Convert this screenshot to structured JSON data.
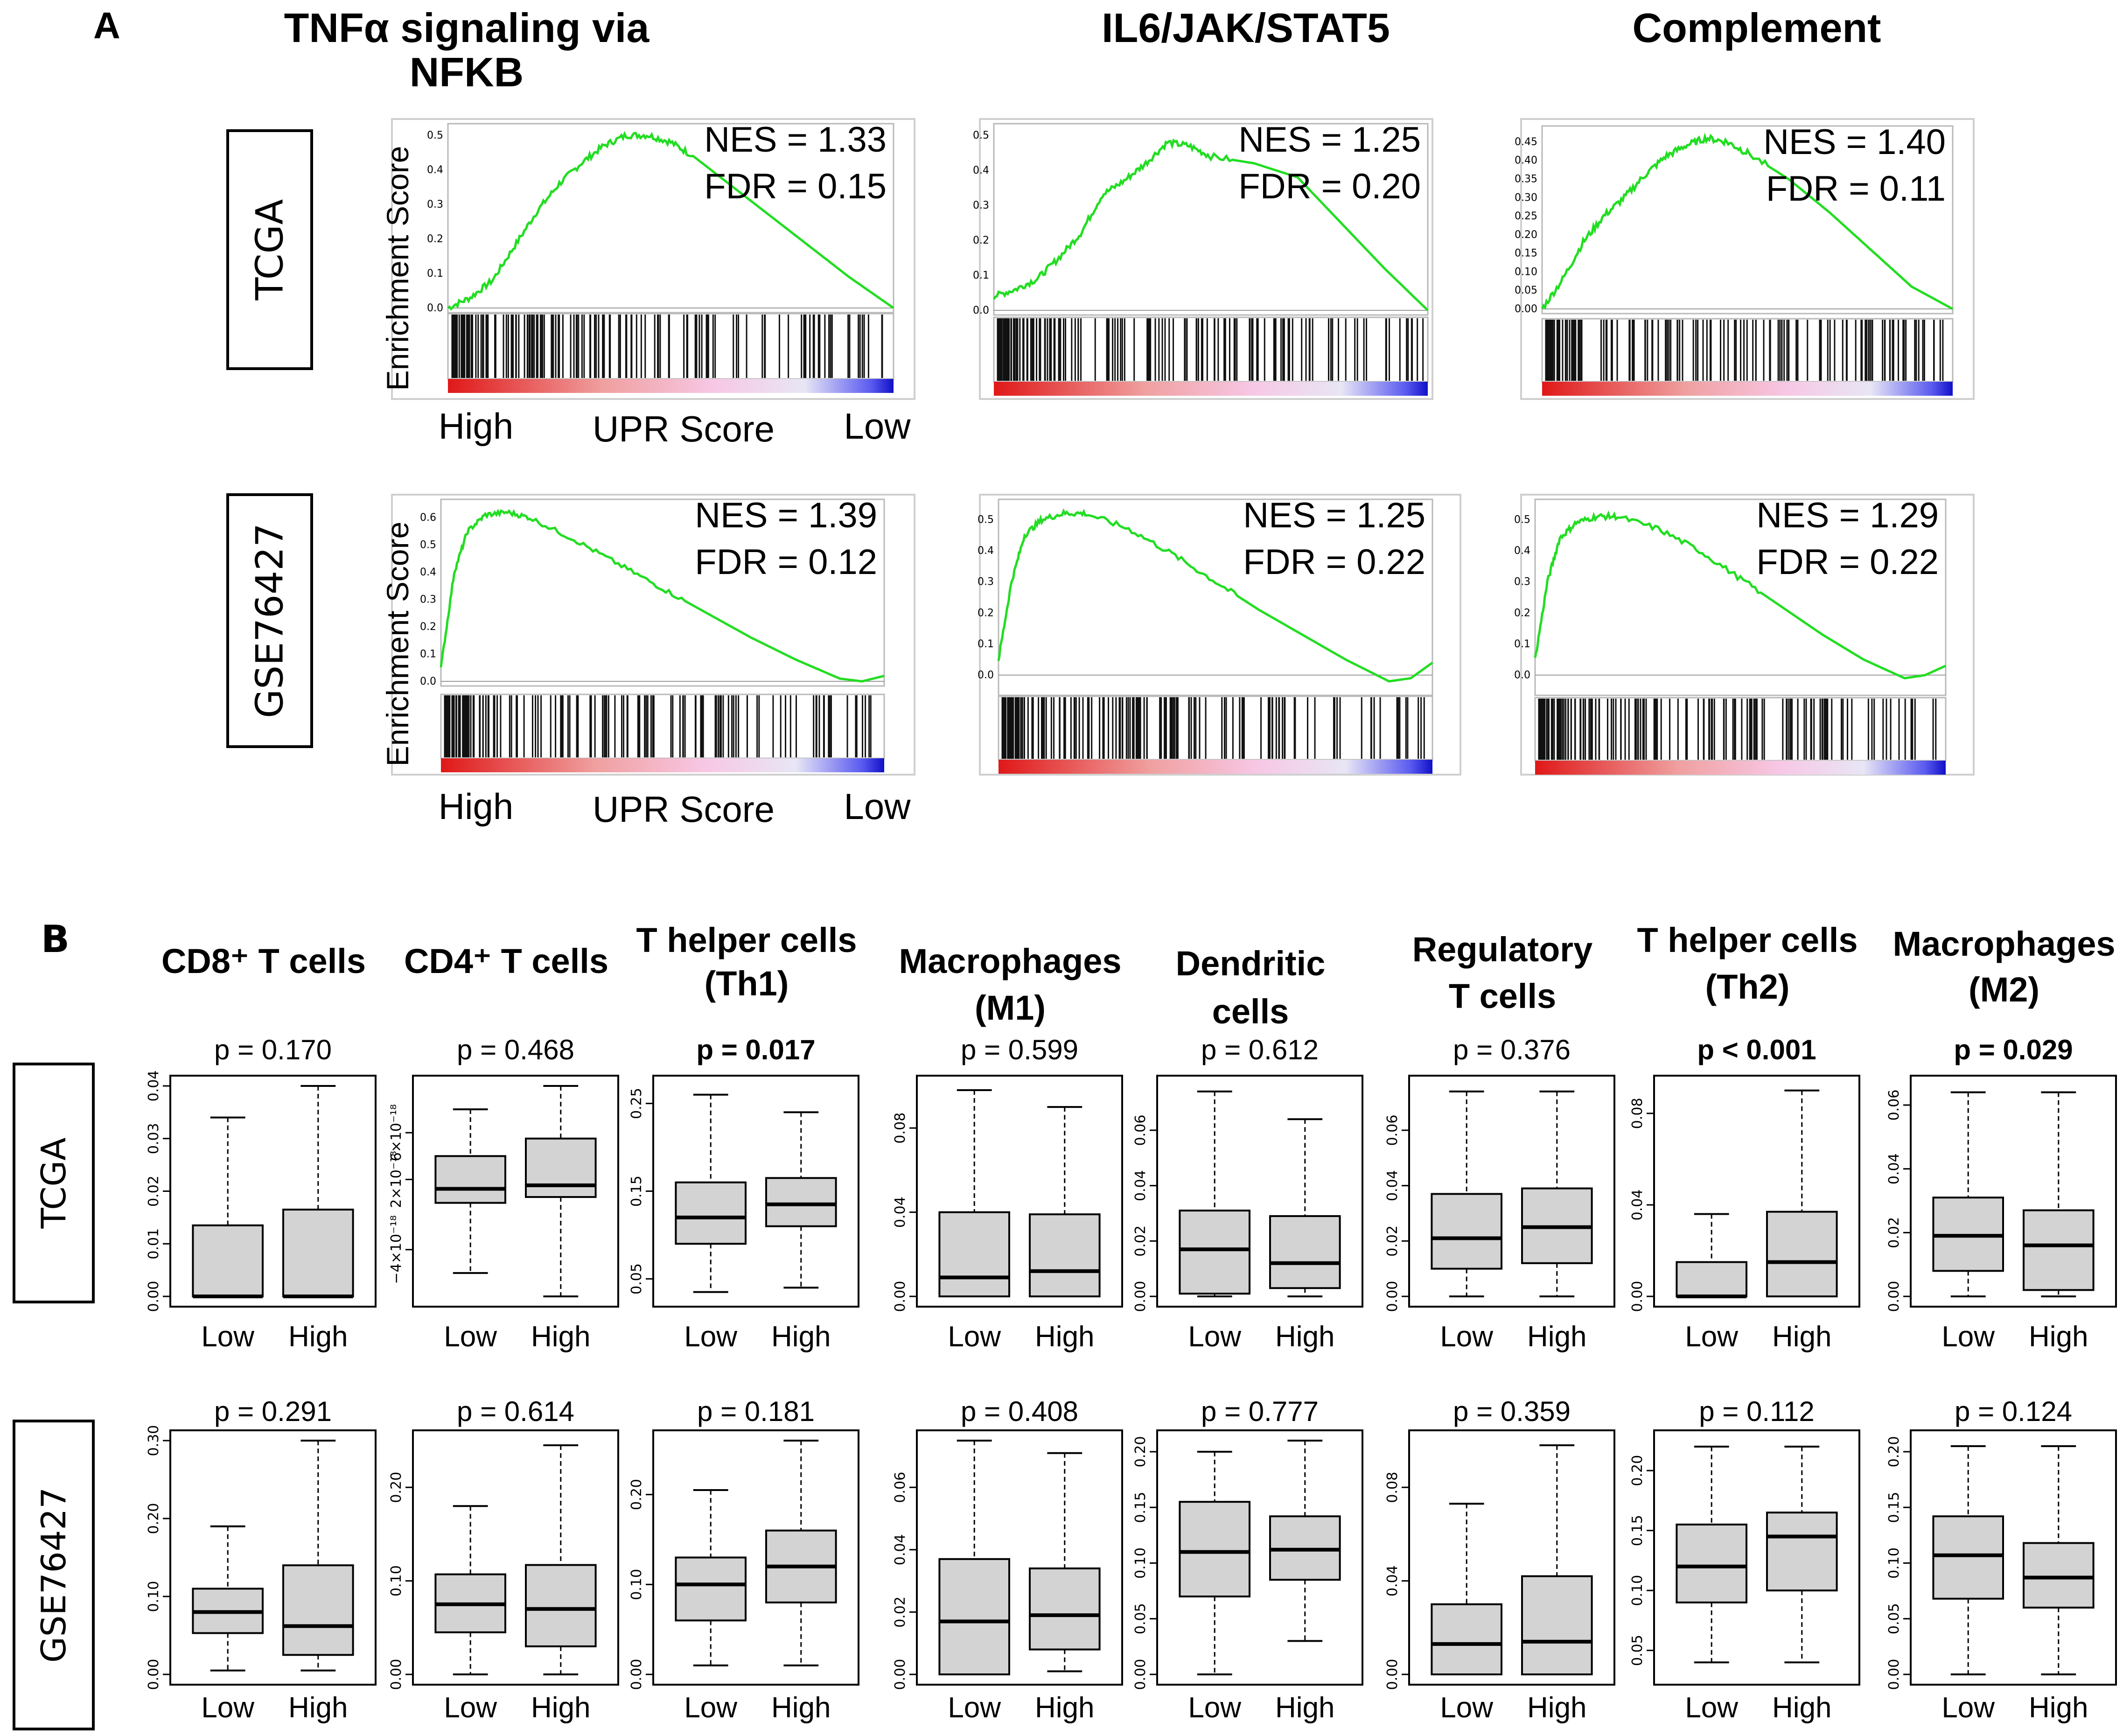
{
  "panel_a": {
    "label": "A",
    "columns": [
      {
        "title_lines": [
          "TNFα signaling via",
          "NFKB"
        ]
      },
      {
        "title_lines": [
          "IL6/JAK/STAT5"
        ]
      },
      {
        "title_lines": [
          "Complement"
        ]
      }
    ],
    "rows": [
      {
        "label": "TCGA",
        "y_axis_label": "Enrichment Score",
        "x_high": "High",
        "x_mid": "UPR Score",
        "x_low": "Low"
      },
      {
        "label": "GSE76427",
        "y_axis_label": "Enrichment Score",
        "x_high": "High",
        "x_mid": "UPR Score",
        "x_low": "Low"
      }
    ]
  },
  "panel_b": {
    "label": "B",
    "x_categories": [
      "Low",
      "High"
    ],
    "row_labels": [
      "TCGA",
      "GSE76427"
    ],
    "column_titles": [
      {
        "lines": [
          "CD8⁺ T cells"
        ]
      },
      {
        "lines": [
          "CD4⁺ T cells"
        ]
      },
      {
        "lines": [
          "T helper cells",
          "(Th1)"
        ]
      },
      {
        "lines": [
          "Macrophages",
          "(M1)"
        ]
      },
      {
        "lines": [
          "Dendritic",
          "cells"
        ]
      },
      {
        "lines": [
          "Regulatory",
          "T cells"
        ]
      },
      {
        "lines": [
          "T helper cells",
          "(Th2)"
        ]
      },
      {
        "lines": [
          "Macrophages",
          "(M2)"
        ]
      }
    ]
  },
  "chart_data": [
    {
      "type": "line",
      "panel": "A",
      "dataset": "TCGA",
      "gene_set": "TNFα signaling via NFKB",
      "ylabel": "Enrichment Score",
      "xlabel": "UPR Score",
      "nes": "NES = 1.33",
      "fdr": "FDR = 0.15",
      "ylim": [
        0,
        0.52
      ],
      "yticks": [
        "0.0",
        "0.1",
        "0.2",
        "0.3",
        "0.4",
        "0.5"
      ],
      "x": [
        0,
        0.05,
        0.1,
        0.15,
        0.2,
        0.25,
        0.3,
        0.35,
        0.4,
        0.45,
        0.5,
        0.55,
        0.6,
        0.7,
        0.8,
        0.9,
        1.0
      ],
      "y": [
        0,
        0.03,
        0.08,
        0.18,
        0.28,
        0.36,
        0.42,
        0.47,
        0.5,
        0.5,
        0.48,
        0.44,
        0.39,
        0.29,
        0.19,
        0.09,
        0.0
      ]
    },
    {
      "type": "line",
      "panel": "A",
      "dataset": "TCGA",
      "gene_set": "IL6/JAK/STAT5",
      "ylabel": "",
      "xlabel": "",
      "nes": "NES = 1.25",
      "fdr": "FDR = 0.20",
      "ylim": [
        0,
        0.52
      ],
      "yticks": [
        "0.0",
        "0.1",
        "0.2",
        "0.3",
        "0.4",
        "0.5"
      ],
      "x": [
        0,
        0.05,
        0.1,
        0.15,
        0.2,
        0.25,
        0.3,
        0.35,
        0.4,
        0.45,
        0.5,
        0.6,
        0.7,
        0.8,
        0.9,
        1.0
      ],
      "y": [
        0.04,
        0.06,
        0.09,
        0.15,
        0.22,
        0.33,
        0.37,
        0.42,
        0.48,
        0.47,
        0.44,
        0.42,
        0.38,
        0.25,
        0.12,
        0.0
      ]
    },
    {
      "type": "line",
      "panel": "A",
      "dataset": "TCGA",
      "gene_set": "Complement",
      "ylabel": "",
      "xlabel": "",
      "nes": "NES = 1.40",
      "fdr": "FDR = 0.11",
      "ylim": [
        0,
        0.48
      ],
      "yticks": [
        "0.00",
        "0.05",
        "0.10",
        "0.15",
        "0.20",
        "0.25",
        "0.30",
        "0.35",
        "0.40",
        "0.45"
      ],
      "x": [
        0,
        0.05,
        0.1,
        0.15,
        0.2,
        0.25,
        0.3,
        0.35,
        0.4,
        0.45,
        0.5,
        0.6,
        0.7,
        0.8,
        0.9,
        1.0
      ],
      "y": [
        0,
        0.08,
        0.18,
        0.25,
        0.3,
        0.36,
        0.41,
        0.44,
        0.46,
        0.45,
        0.42,
        0.35,
        0.26,
        0.16,
        0.06,
        0.0
      ]
    },
    {
      "type": "line",
      "panel": "A",
      "dataset": "GSE76427",
      "gene_set": "TNFα signaling via NFKB",
      "ylabel": "Enrichment Score",
      "xlabel": "UPR Score",
      "nes": "NES = 1.39",
      "fdr": "FDR = 0.12",
      "ylim": [
        0,
        0.65
      ],
      "yticks": [
        "0.0",
        "0.1",
        "0.2",
        "0.3",
        "0.4",
        "0.5",
        "0.6"
      ],
      "x": [
        0,
        0.03,
        0.06,
        0.1,
        0.15,
        0.2,
        0.3,
        0.4,
        0.5,
        0.6,
        0.7,
        0.8,
        0.9,
        0.95,
        1.0
      ],
      "y": [
        0.05,
        0.4,
        0.55,
        0.61,
        0.62,
        0.6,
        0.52,
        0.43,
        0.34,
        0.25,
        0.16,
        0.08,
        0.01,
        0.0,
        0.02
      ]
    },
    {
      "type": "line",
      "panel": "A",
      "dataset": "GSE76427",
      "gene_set": "IL6/JAK/STAT5",
      "ylabel": "",
      "xlabel": "",
      "nes": "NES = 1.25",
      "fdr": "FDR = 0.22",
      "ylim": [
        -0.05,
        0.55
      ],
      "yticks": [
        "0.0",
        "0.1",
        "0.2",
        "0.3",
        "0.4",
        "0.5"
      ],
      "x": [
        0,
        0.03,
        0.06,
        0.1,
        0.15,
        0.2,
        0.3,
        0.4,
        0.5,
        0.6,
        0.7,
        0.8,
        0.9,
        0.95,
        1.0
      ],
      "y": [
        0.05,
        0.3,
        0.45,
        0.5,
        0.52,
        0.52,
        0.47,
        0.39,
        0.3,
        0.21,
        0.13,
        0.05,
        -0.02,
        -0.01,
        0.04
      ]
    },
    {
      "type": "line",
      "panel": "A",
      "dataset": "GSE76427",
      "gene_set": "Complement",
      "ylabel": "",
      "xlabel": "",
      "nes": "NES = 1.29",
      "fdr": "FDR = 0.22",
      "ylim": [
        -0.05,
        0.55
      ],
      "yticks": [
        "0.0",
        "0.1",
        "0.2",
        "0.3",
        "0.4",
        "0.5"
      ],
      "x": [
        0,
        0.03,
        0.06,
        0.1,
        0.15,
        0.2,
        0.3,
        0.4,
        0.5,
        0.6,
        0.7,
        0.8,
        0.9,
        0.95,
        1.0
      ],
      "y": [
        0.05,
        0.3,
        0.44,
        0.49,
        0.51,
        0.51,
        0.47,
        0.4,
        0.31,
        0.22,
        0.13,
        0.05,
        -0.01,
        0.0,
        0.03
      ]
    },
    {
      "type": "box",
      "panel": "B",
      "dataset": "TCGA",
      "cell_type": "CD8+ T cells",
      "p_label": "p = 0.170",
      "p_bold": false,
      "ylim": [
        0,
        0.04
      ],
      "yticks": [
        0,
        0.01,
        0.02,
        0.03,
        0.04
      ],
      "ytick_labels": [
        "0.00",
        "0.01",
        "0.02",
        "0.03",
        "0.04"
      ],
      "boxes": [
        {
          "group": "Low",
          "whisker_low": 0,
          "q1": 0,
          "median": 0,
          "q3": 0.0135,
          "whisker_high": 0.034
        },
        {
          "group": "High",
          "whisker_low": 0,
          "q1": 0,
          "median": 0,
          "q3": 0.0165,
          "whisker_high": 0.04
        }
      ]
    },
    {
      "type": "box",
      "panel": "B",
      "dataset": "TCGA",
      "cell_type": "CD4+ T cells",
      "p_label": "p = 0.468",
      "p_bold": false,
      "ylim": [
        -8,
        10
      ],
      "yticks": [
        -4,
        2,
        6
      ],
      "ytick_labels": [
        "−4×10⁻¹⁸",
        "2×10⁻¹⁸",
        "6×10⁻¹⁸"
      ],
      "boxes": [
        {
          "group": "Low",
          "whisker_low": -6,
          "q1": 0,
          "median": 1.2,
          "q3": 4,
          "whisker_high": 8
        },
        {
          "group": "High",
          "whisker_low": -8,
          "q1": 0.5,
          "median": 1.5,
          "q3": 5.5,
          "whisker_high": 10
        }
      ]
    },
    {
      "type": "box",
      "panel": "B",
      "dataset": "TCGA",
      "cell_type": "T helper cells (Th1)",
      "p_label": "p = 0.017",
      "p_bold": true,
      "ylim": [
        0.03,
        0.27
      ],
      "yticks": [
        0.05,
        0.15,
        0.25
      ],
      "ytick_labels": [
        "0.05",
        "0.15",
        "0.25"
      ],
      "boxes": [
        {
          "group": "Low",
          "whisker_low": 0.035,
          "q1": 0.09,
          "median": 0.12,
          "q3": 0.16,
          "whisker_high": 0.26
        },
        {
          "group": "High",
          "whisker_low": 0.04,
          "q1": 0.11,
          "median": 0.135,
          "q3": 0.165,
          "whisker_high": 0.24
        }
      ]
    },
    {
      "type": "box",
      "panel": "B",
      "dataset": "TCGA",
      "cell_type": "Macrophages (M1)",
      "p_label": "p = 0.599",
      "p_bold": false,
      "ylim": [
        0,
        0.1
      ],
      "yticks": [
        0,
        0.04,
        0.08
      ],
      "ytick_labels": [
        "0.00",
        "0.04",
        "0.08"
      ],
      "boxes": [
        {
          "group": "Low",
          "whisker_low": 0,
          "q1": 0,
          "median": 0.009,
          "q3": 0.04,
          "whisker_high": 0.098
        },
        {
          "group": "High",
          "whisker_low": 0,
          "q1": 0,
          "median": 0.012,
          "q3": 0.039,
          "whisker_high": 0.09
        }
      ]
    },
    {
      "type": "box",
      "panel": "B",
      "dataset": "TCGA",
      "cell_type": "Dendritic cells",
      "p_label": "p = 0.612",
      "p_bold": false,
      "ylim": [
        0,
        0.076
      ],
      "yticks": [
        0,
        0.02,
        0.04,
        0.06
      ],
      "ytick_labels": [
        "0.00",
        "0.02",
        "0.04",
        "0.06"
      ],
      "boxes": [
        {
          "group": "Low",
          "whisker_low": 0,
          "q1": 0.001,
          "median": 0.017,
          "q3": 0.031,
          "whisker_high": 0.074
        },
        {
          "group": "High",
          "whisker_low": 0,
          "q1": 0.003,
          "median": 0.012,
          "q3": 0.029,
          "whisker_high": 0.064
        }
      ]
    },
    {
      "type": "box",
      "panel": "B",
      "dataset": "TCGA",
      "cell_type": "Regulatory T cells",
      "p_label": "p = 0.376",
      "p_bold": false,
      "ylim": [
        0,
        0.076
      ],
      "yticks": [
        0,
        0.02,
        0.04,
        0.06
      ],
      "ytick_labels": [
        "0.00",
        "0.02",
        "0.04",
        "0.06"
      ],
      "boxes": [
        {
          "group": "Low",
          "whisker_low": 0,
          "q1": 0.01,
          "median": 0.021,
          "q3": 0.037,
          "whisker_high": 0.074
        },
        {
          "group": "High",
          "whisker_low": 0,
          "q1": 0.012,
          "median": 0.025,
          "q3": 0.039,
          "whisker_high": 0.074
        }
      ]
    },
    {
      "type": "box",
      "panel": "B",
      "dataset": "TCGA",
      "cell_type": "T helper cells (Th2)",
      "p_label": "p < 0.001",
      "p_bold": true,
      "ylim": [
        0,
        0.092
      ],
      "yticks": [
        0,
        0.04,
        0.08
      ],
      "ytick_labels": [
        "0.00",
        "0.04",
        "0.08"
      ],
      "boxes": [
        {
          "group": "Low",
          "whisker_low": 0,
          "q1": 0,
          "median": 0,
          "q3": 0.015,
          "whisker_high": 0.036
        },
        {
          "group": "High",
          "whisker_low": 0,
          "q1": 0,
          "median": 0.015,
          "q3": 0.037,
          "whisker_high": 0.09
        }
      ]
    },
    {
      "type": "box",
      "panel": "B",
      "dataset": "TCGA",
      "cell_type": "Macrophages (M2)",
      "p_label": "p = 0.029",
      "p_bold": true,
      "ylim": [
        0,
        0.066
      ],
      "yticks": [
        0,
        0.02,
        0.04,
        0.06
      ],
      "ytick_labels": [
        "0.00",
        "0.02",
        "0.04",
        "0.06"
      ],
      "boxes": [
        {
          "group": "Low",
          "whisker_low": 0,
          "q1": 0.008,
          "median": 0.019,
          "q3": 0.031,
          "whisker_high": 0.064
        },
        {
          "group": "High",
          "whisker_low": 0,
          "q1": 0.002,
          "median": 0.016,
          "q3": 0.027,
          "whisker_high": 0.064
        }
      ]
    },
    {
      "type": "box",
      "panel": "B",
      "dataset": "GSE76427",
      "cell_type": "CD8+ T cells",
      "p_label": "p = 0.291",
      "p_bold": false,
      "ylim": [
        0,
        0.3
      ],
      "yticks": [
        0,
        0.1,
        0.2,
        0.3
      ],
      "ytick_labels": [
        "0.00",
        "0.10",
        "0.20",
        "0.30"
      ],
      "boxes": [
        {
          "group": "Low",
          "whisker_low": 0.005,
          "q1": 0.053,
          "median": 0.08,
          "q3": 0.11,
          "whisker_high": 0.19
        },
        {
          "group": "High",
          "whisker_low": 0.005,
          "q1": 0.025,
          "median": 0.062,
          "q3": 0.14,
          "whisker_high": 0.3
        }
      ]
    },
    {
      "type": "box",
      "panel": "B",
      "dataset": "GSE76427",
      "cell_type": "CD4+ T cells",
      "p_label": "p = 0.614",
      "p_bold": false,
      "ylim": [
        0,
        0.25
      ],
      "yticks": [
        0,
        0.1,
        0.2
      ],
      "ytick_labels": [
        "0.00",
        "0.10",
        "0.20"
      ],
      "boxes": [
        {
          "group": "Low",
          "whisker_low": 0,
          "q1": 0.045,
          "median": 0.075,
          "q3": 0.107,
          "whisker_high": 0.18
        },
        {
          "group": "High",
          "whisker_low": 0,
          "q1": 0.03,
          "median": 0.07,
          "q3": 0.117,
          "whisker_high": 0.245
        }
      ]
    },
    {
      "type": "box",
      "panel": "B",
      "dataset": "GSE76427",
      "cell_type": "T helper cells (Th1)",
      "p_label": "p = 0.181",
      "p_bold": false,
      "ylim": [
        0,
        0.26
      ],
      "yticks": [
        0,
        0.1,
        0.2
      ],
      "ytick_labels": [
        "0.00",
        "0.10",
        "0.20"
      ],
      "boxes": [
        {
          "group": "Low",
          "whisker_low": 0.01,
          "q1": 0.06,
          "median": 0.1,
          "q3": 0.13,
          "whisker_high": 0.205
        },
        {
          "group": "High",
          "whisker_low": 0.01,
          "q1": 0.08,
          "median": 0.12,
          "q3": 0.16,
          "whisker_high": 0.26
        }
      ]
    },
    {
      "type": "box",
      "panel": "B",
      "dataset": "GSE76427",
      "cell_type": "Macrophages (M1)",
      "p_label": "p = 0.408",
      "p_bold": false,
      "ylim": [
        0,
        0.075
      ],
      "yticks": [
        0,
        0.02,
        0.04,
        0.06
      ],
      "ytick_labels": [
        "0.00",
        "0.02",
        "0.04",
        "0.06"
      ],
      "boxes": [
        {
          "group": "Low",
          "whisker_low": 0,
          "q1": 0,
          "median": 0.017,
          "q3": 0.037,
          "whisker_high": 0.075
        },
        {
          "group": "High",
          "whisker_low": 0.001,
          "q1": 0.008,
          "median": 0.019,
          "q3": 0.034,
          "whisker_high": 0.071
        }
      ]
    },
    {
      "type": "box",
      "panel": "B",
      "dataset": "GSE76427",
      "cell_type": "Dendritic cells",
      "p_label": "p = 0.777",
      "p_bold": false,
      "ylim": [
        0,
        0.21
      ],
      "yticks": [
        0,
        0.05,
        0.1,
        0.15,
        0.2
      ],
      "ytick_labels": [
        "0.00",
        "0.05",
        "0.10",
        "0.15",
        "0.20"
      ],
      "boxes": [
        {
          "group": "Low",
          "whisker_low": 0,
          "q1": 0.07,
          "median": 0.11,
          "q3": 0.155,
          "whisker_high": 0.2
        },
        {
          "group": "High",
          "whisker_low": 0.03,
          "q1": 0.085,
          "median": 0.112,
          "q3": 0.142,
          "whisker_high": 0.21
        }
      ]
    },
    {
      "type": "box",
      "panel": "B",
      "dataset": "GSE76427",
      "cell_type": "Regulatory T cells",
      "p_label": "p = 0.359",
      "p_bold": false,
      "ylim": [
        0,
        0.1
      ],
      "yticks": [
        0,
        0.04,
        0.08
      ],
      "ytick_labels": [
        "0.00",
        "0.04",
        "0.08"
      ],
      "boxes": [
        {
          "group": "Low",
          "whisker_low": 0,
          "q1": 0,
          "median": 0.013,
          "q3": 0.03,
          "whisker_high": 0.073
        },
        {
          "group": "High",
          "whisker_low": 0,
          "q1": 0,
          "median": 0.014,
          "q3": 0.042,
          "whisker_high": 0.098
        }
      ]
    },
    {
      "type": "box",
      "panel": "B",
      "dataset": "GSE76427",
      "cell_type": "T helper cells (Th2)",
      "p_label": "p = 0.112",
      "p_bold": false,
      "ylim": [
        0.03,
        0.225
      ],
      "yticks": [
        0.05,
        0.1,
        0.15,
        0.2
      ],
      "ytick_labels": [
        "0.05",
        "0.10",
        "0.15",
        "0.20"
      ],
      "boxes": [
        {
          "group": "Low",
          "whisker_low": 0.04,
          "q1": 0.09,
          "median": 0.12,
          "q3": 0.155,
          "whisker_high": 0.22
        },
        {
          "group": "High",
          "whisker_low": 0.04,
          "q1": 0.1,
          "median": 0.145,
          "q3": 0.165,
          "whisker_high": 0.22
        }
      ]
    },
    {
      "type": "box",
      "panel": "B",
      "dataset": "GSE76427",
      "cell_type": "Macrophages (M2)",
      "p_label": "p = 0.124",
      "p_bold": false,
      "ylim": [
        0,
        0.21
      ],
      "yticks": [
        0,
        0.05,
        0.1,
        0.15,
        0.2
      ],
      "ytick_labels": [
        "0.00",
        "0.05",
        "0.10",
        "0.15",
        "0.20"
      ],
      "boxes": [
        {
          "group": "Low",
          "whisker_low": 0,
          "q1": 0.068,
          "median": 0.107,
          "q3": 0.142,
          "whisker_high": 0.205
        },
        {
          "group": "High",
          "whisker_low": 0,
          "q1": 0.06,
          "median": 0.087,
          "q3": 0.118,
          "whisker_high": 0.205
        }
      ]
    }
  ]
}
